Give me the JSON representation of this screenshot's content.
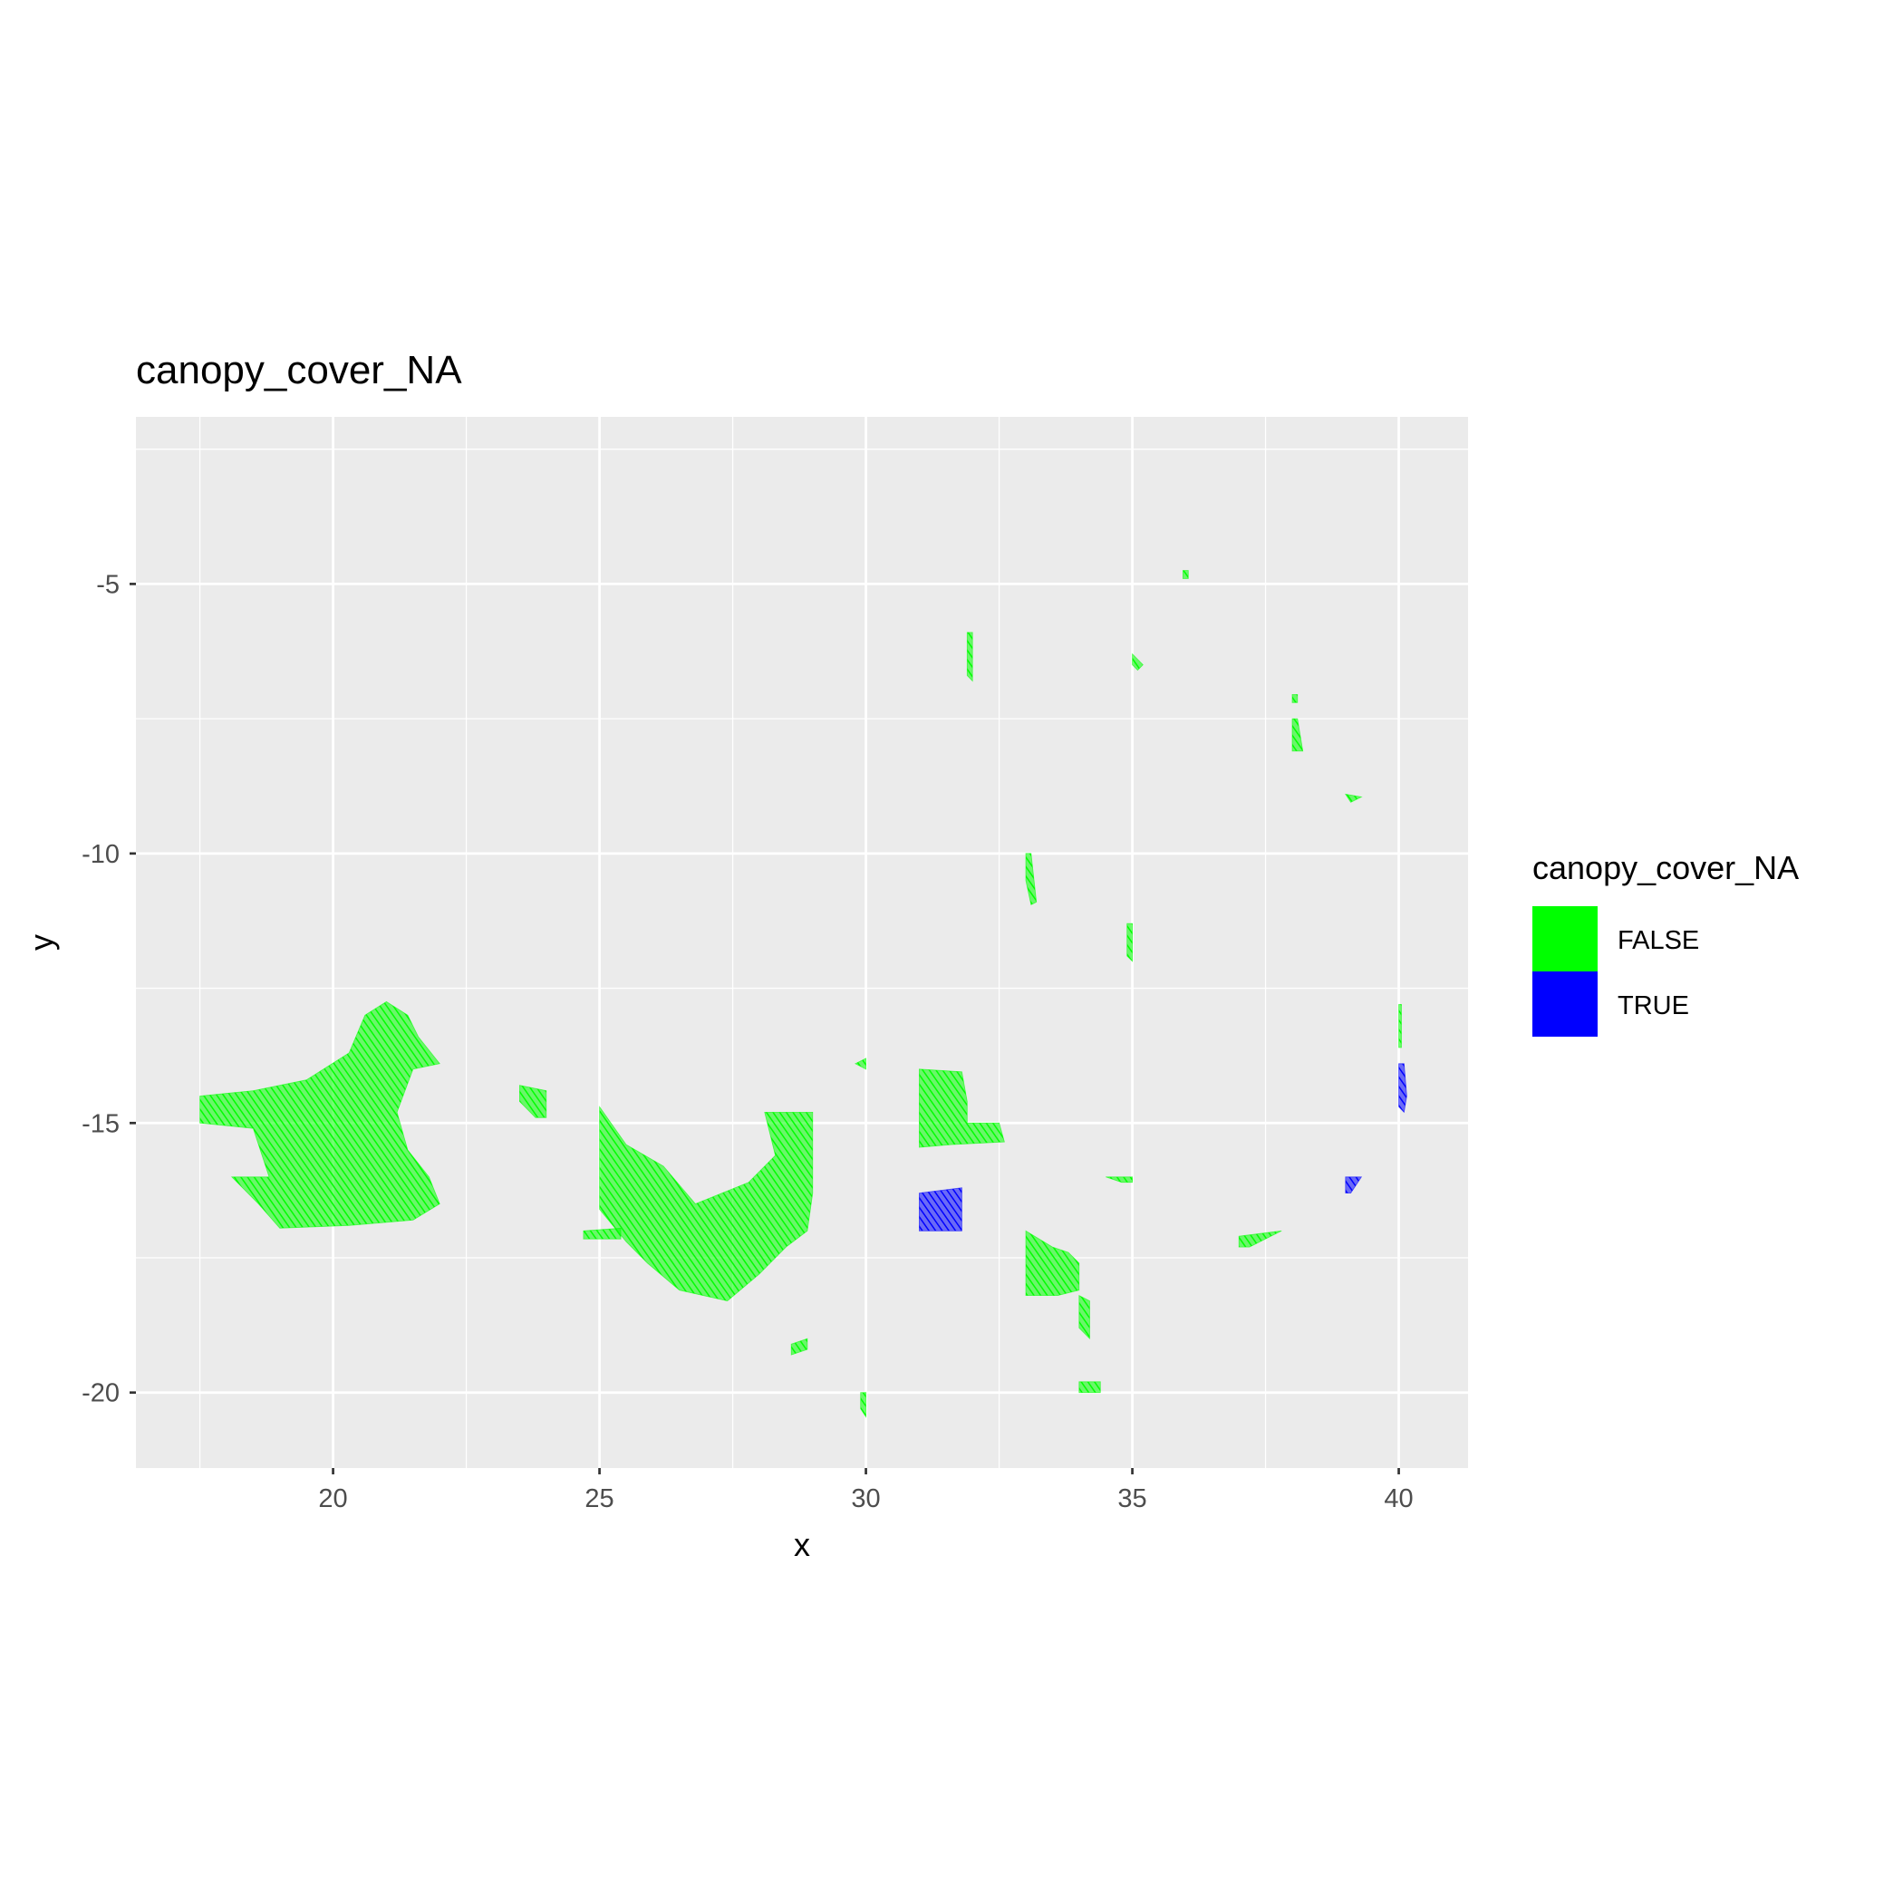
{
  "chart_data": {
    "type": "raster",
    "title": "canopy_cover_NA",
    "xlabel": "x",
    "ylabel": "y",
    "xlim": [
      16.3,
      41.3
    ],
    "ylim": [
      -21.4,
      -1.9
    ],
    "x_ticks": [
      20,
      25,
      30,
      35,
      40
    ],
    "y_ticks": [
      -5,
      -10,
      -15,
      -20
    ],
    "x_tick_labels": [
      "20",
      "25",
      "30",
      "35",
      "40"
    ],
    "y_tick_labels": [
      "-5",
      "-10",
      "-15",
      "-20"
    ],
    "grid": true,
    "panel_background": "#EBEBEB",
    "legend": {
      "title": "canopy_cover_NA",
      "position": "right",
      "entries": [
        {
          "label": "FALSE",
          "color": "#00FF00"
        },
        {
          "label": "TRUE",
          "color": "#0000FF"
        }
      ]
    },
    "regions": [
      {
        "category": "FALSE",
        "polygon": [
          [
            17.5,
            -14.5
          ],
          [
            18.5,
            -14.4
          ],
          [
            19.5,
            -14.2
          ],
          [
            20.3,
            -13.7
          ],
          [
            20.6,
            -13.0
          ],
          [
            21.0,
            -12.75
          ],
          [
            21.4,
            -13.0
          ],
          [
            21.6,
            -13.4
          ],
          [
            22.0,
            -13.9
          ],
          [
            21.5,
            -14.0
          ],
          [
            21.2,
            -14.8
          ],
          [
            21.4,
            -15.5
          ],
          [
            21.8,
            -16.0
          ],
          [
            22.0,
            -16.5
          ],
          [
            21.5,
            -16.8
          ],
          [
            20.3,
            -16.9
          ],
          [
            19.0,
            -16.95
          ],
          [
            18.6,
            -16.5
          ],
          [
            18.1,
            -16.0
          ],
          [
            18.8,
            -16.0
          ],
          [
            18.5,
            -15.1
          ],
          [
            17.5,
            -15.0
          ]
        ]
      },
      {
        "category": "FALSE",
        "polygon": [
          [
            23.5,
            -14.3
          ],
          [
            24.0,
            -14.4
          ],
          [
            24.0,
            -14.9
          ],
          [
            23.8,
            -14.9
          ],
          [
            23.5,
            -14.6
          ]
        ]
      },
      {
        "category": "FALSE",
        "polygon": [
          [
            25.0,
            -14.7
          ],
          [
            25.5,
            -15.4
          ],
          [
            26.2,
            -15.8
          ],
          [
            26.8,
            -16.5
          ],
          [
            27.8,
            -16.1
          ],
          [
            28.3,
            -15.6
          ],
          [
            28.1,
            -14.8
          ],
          [
            28.6,
            -14.8
          ],
          [
            29.0,
            -14.8
          ],
          [
            29.0,
            -16.3
          ],
          [
            28.9,
            -17.0
          ],
          [
            28.5,
            -17.3
          ],
          [
            28.0,
            -17.8
          ],
          [
            27.4,
            -18.3
          ],
          [
            26.5,
            -18.1
          ],
          [
            25.9,
            -17.6
          ],
          [
            25.5,
            -17.2
          ],
          [
            25.0,
            -16.6
          ]
        ]
      },
      {
        "category": "FALSE",
        "polygon": [
          [
            24.7,
            -17.0
          ],
          [
            25.4,
            -16.95
          ],
          [
            25.4,
            -17.15
          ],
          [
            24.7,
            -17.15
          ]
        ]
      },
      {
        "category": "FALSE",
        "polygon": [
          [
            28.6,
            -19.1
          ],
          [
            28.9,
            -19.0
          ],
          [
            28.9,
            -19.2
          ],
          [
            28.6,
            -19.3
          ]
        ]
      },
      {
        "category": "FALSE",
        "polygon": [
          [
            29.8,
            -13.9
          ],
          [
            30.0,
            -13.8
          ],
          [
            30.0,
            -14.0
          ]
        ]
      },
      {
        "category": "FALSE",
        "polygon": [
          [
            29.9,
            -20.0
          ],
          [
            30.0,
            -20.0
          ],
          [
            30.0,
            -20.45
          ],
          [
            29.9,
            -20.3
          ]
        ]
      },
      {
        "category": "FALSE",
        "polygon": [
          [
            31.0,
            -14.0
          ],
          [
            31.8,
            -14.05
          ],
          [
            31.9,
            -14.6
          ],
          [
            31.9,
            -15.0
          ],
          [
            32.5,
            -15.0
          ],
          [
            32.6,
            -15.35
          ],
          [
            31.6,
            -15.4
          ],
          [
            31.0,
            -15.45
          ]
        ]
      },
      {
        "category": "FALSE",
        "polygon": [
          [
            33.0,
            -17.0
          ],
          [
            33.5,
            -17.3
          ],
          [
            33.8,
            -17.4
          ],
          [
            34.0,
            -17.6
          ],
          [
            34.0,
            -18.1
          ],
          [
            33.6,
            -18.2
          ],
          [
            33.0,
            -18.2
          ]
        ]
      },
      {
        "category": "FALSE",
        "polygon": [
          [
            34.0,
            -18.2
          ],
          [
            34.2,
            -18.3
          ],
          [
            34.2,
            -19.0
          ],
          [
            34.0,
            -18.8
          ]
        ]
      },
      {
        "category": "FALSE",
        "polygon": [
          [
            34.0,
            -19.8
          ],
          [
            34.4,
            -19.8
          ],
          [
            34.4,
            -20.0
          ],
          [
            34.0,
            -20.0
          ]
        ]
      },
      {
        "category": "FALSE",
        "polygon": [
          [
            31.9,
            -5.9
          ],
          [
            32.0,
            -5.9
          ],
          [
            32.0,
            -6.8
          ],
          [
            31.9,
            -6.7
          ]
        ]
      },
      {
        "category": "FALSE",
        "polygon": [
          [
            33.0,
            -10.0
          ],
          [
            33.1,
            -10.0
          ],
          [
            33.2,
            -10.9
          ],
          [
            33.1,
            -10.95
          ],
          [
            33.0,
            -10.5
          ]
        ]
      },
      {
        "category": "FALSE",
        "polygon": [
          [
            34.9,
            -11.3
          ],
          [
            35.0,
            -11.3
          ],
          [
            35.0,
            -12.0
          ],
          [
            34.9,
            -11.9
          ]
        ]
      },
      {
        "category": "FALSE",
        "polygon": [
          [
            38.0,
            -7.5
          ],
          [
            38.1,
            -7.5
          ],
          [
            38.2,
            -8.1
          ],
          [
            38.0,
            -8.1
          ]
        ]
      },
      {
        "category": "FALSE",
        "polygon": [
          [
            39.0,
            -8.9
          ],
          [
            39.3,
            -8.95
          ],
          [
            39.1,
            -9.05
          ]
        ]
      },
      {
        "category": "FALSE",
        "polygon": [
          [
            37.0,
            -17.1
          ],
          [
            37.8,
            -17.0
          ],
          [
            37.2,
            -17.3
          ],
          [
            37.0,
            -17.3
          ]
        ]
      },
      {
        "category": "FALSE",
        "polygon": [
          [
            34.5,
            -16.0
          ],
          [
            35.0,
            -16.0
          ],
          [
            35.0,
            -16.1
          ],
          [
            34.8,
            -16.1
          ]
        ]
      },
      {
        "category": "FALSE",
        "polygon": [
          [
            35.0,
            -6.3
          ],
          [
            35.2,
            -6.5
          ],
          [
            35.1,
            -6.6
          ],
          [
            35.0,
            -6.5
          ]
        ]
      },
      {
        "category": "FALSE",
        "polygon": [
          [
            38.0,
            -7.05
          ],
          [
            38.1,
            -7.05
          ],
          [
            38.1,
            -7.2
          ],
          [
            38.0,
            -7.2
          ]
        ]
      },
      {
        "category": "FALSE",
        "polygon": [
          [
            35.95,
            -4.75
          ],
          [
            36.05,
            -4.75
          ],
          [
            36.05,
            -4.9
          ],
          [
            35.95,
            -4.9
          ]
        ]
      },
      {
        "category": "FALSE",
        "polygon": [
          [
            40.0,
            -12.8
          ],
          [
            40.05,
            -12.8
          ],
          [
            40.05,
            -13.6
          ],
          [
            40.0,
            -13.6
          ]
        ]
      },
      {
        "category": "TRUE",
        "polygon": [
          [
            31.0,
            -16.3
          ],
          [
            31.8,
            -16.2
          ],
          [
            31.8,
            -17.0
          ],
          [
            31.0,
            -17.0
          ]
        ]
      },
      {
        "category": "TRUE",
        "polygon": [
          [
            39.0,
            -16.0
          ],
          [
            39.3,
            -16.0
          ],
          [
            39.1,
            -16.3
          ],
          [
            39.0,
            -16.3
          ]
        ]
      },
      {
        "category": "TRUE",
        "polygon": [
          [
            40.0,
            -13.9
          ],
          [
            40.1,
            -13.9
          ],
          [
            40.15,
            -14.5
          ],
          [
            40.1,
            -14.8
          ],
          [
            40.0,
            -14.7
          ]
        ]
      }
    ]
  }
}
